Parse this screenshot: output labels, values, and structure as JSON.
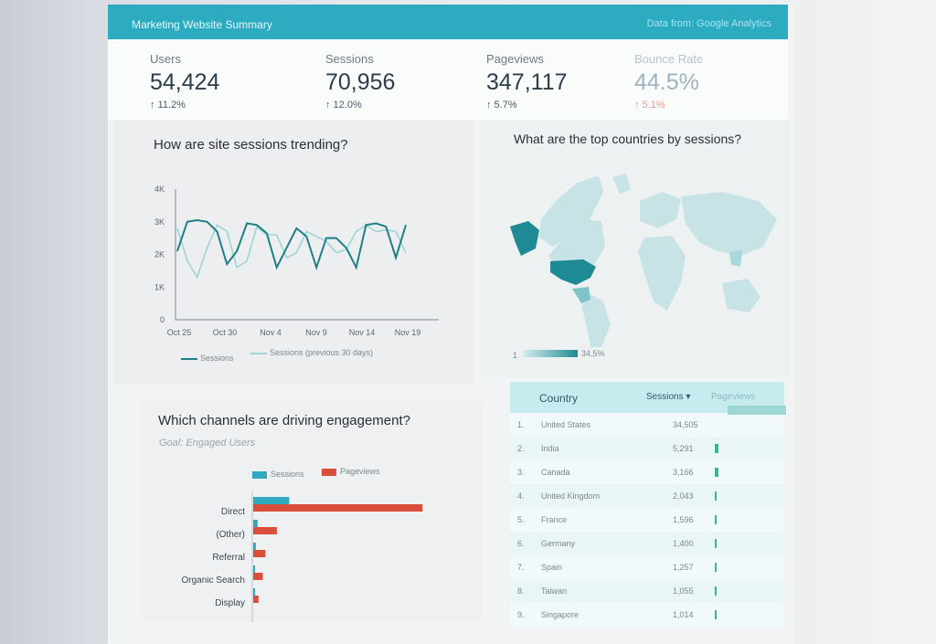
{
  "header": {
    "title": "Marketing Website Summary",
    "source": "Data from: Google Analytics"
  },
  "kpis": [
    {
      "label": "Users",
      "value": "54,424",
      "change": "↑ 11.2%"
    },
    {
      "label": "Sessions",
      "value": "70,956",
      "change": "↑ 12.0%"
    },
    {
      "label": "Pageviews",
      "value": "347,117",
      "change": "↑ 5.7%"
    },
    {
      "label": "Bounce Rate",
      "value": "44.5%",
      "change": "↑ 5.1%"
    }
  ],
  "sessions_card": {
    "title": "How are site sessions trending?",
    "legend_current": "Sessions",
    "legend_previous": "Sessions (previous 30 days)",
    "colors": {
      "current": "#1f7f86",
      "previous": "#9fd4d6"
    }
  },
  "map_card": {
    "title": "What are the top countries by sessions?",
    "scale_min": "1",
    "scale_max": "34,5%"
  },
  "channels_card": {
    "title": "Which channels are driving engagement?",
    "subtitle": "Goal: Engaged Users",
    "colors": {
      "sessions": "#2fa9bf",
      "pageviews": "#d94f3b"
    }
  },
  "table": {
    "headers": {
      "country": "Country",
      "sessions": "Sessions ▾",
      "pageviews": "Pageviews"
    },
    "rows": [
      {
        "rank": "1.",
        "country": "United States",
        "sessions": "34,505"
      },
      {
        "rank": "2.",
        "country": "India",
        "sessions": "5,291"
      },
      {
        "rank": "3.",
        "country": "Canada",
        "sessions": "3,166"
      },
      {
        "rank": "4.",
        "country": "United Kingdom",
        "sessions": "2,043"
      },
      {
        "rank": "5.",
        "country": "France",
        "sessions": "1,596"
      },
      {
        "rank": "6.",
        "country": "Germany",
        "sessions": "1,400"
      },
      {
        "rank": "7.",
        "country": "Spain",
        "sessions": "1,257"
      },
      {
        "rank": "8.",
        "country": "Taiwan",
        "sessions": "1,055"
      },
      {
        "rank": "9.",
        "country": "Singapore",
        "sessions": "1,014"
      }
    ]
  },
  "chart_data": [
    {
      "type": "line",
      "x_ticks": [
        "Oct 25",
        "Oct 30",
        "Nov 4",
        "Nov 9",
        "Nov 14",
        "Nov 19"
      ],
      "y_ticks": [
        "0",
        "1K",
        "2K",
        "3K",
        "4K"
      ],
      "ylim": [
        0,
        4000
      ],
      "series": [
        {
          "name": "Sessions",
          "values": [
            2100,
            3000,
            3050,
            3000,
            2700,
            1700,
            2100,
            2950,
            2900,
            2650,
            1600,
            2200,
            2800,
            2550,
            1600,
            2500,
            2500,
            2200,
            1600,
            2900,
            2950,
            2850,
            1900,
            2900
          ]
        },
        {
          "name": "Sessions (previous 30 days)",
          "values": [
            2800,
            1800,
            1300,
            2200,
            2900,
            2700,
            1600,
            1800,
            2850,
            2600,
            2600,
            1900,
            2050,
            2700,
            2550,
            2400,
            2050,
            2150,
            2700,
            2900,
            2700,
            2750,
            2700,
            2050
          ]
        }
      ]
    },
    {
      "type": "bar",
      "orientation": "horizontal",
      "categories": [
        "Direct",
        "(Other)",
        "Referral",
        "Organic Search",
        "Display"
      ],
      "series": [
        {
          "name": "Sessions",
          "values": [
            4100,
            500,
            300,
            200,
            150
          ]
        },
        {
          "name": "Pageviews",
          "values": [
            19300,
            2700,
            1400,
            1100,
            600
          ]
        }
      ],
      "xlim": [
        0,
        20000
      ]
    }
  ]
}
